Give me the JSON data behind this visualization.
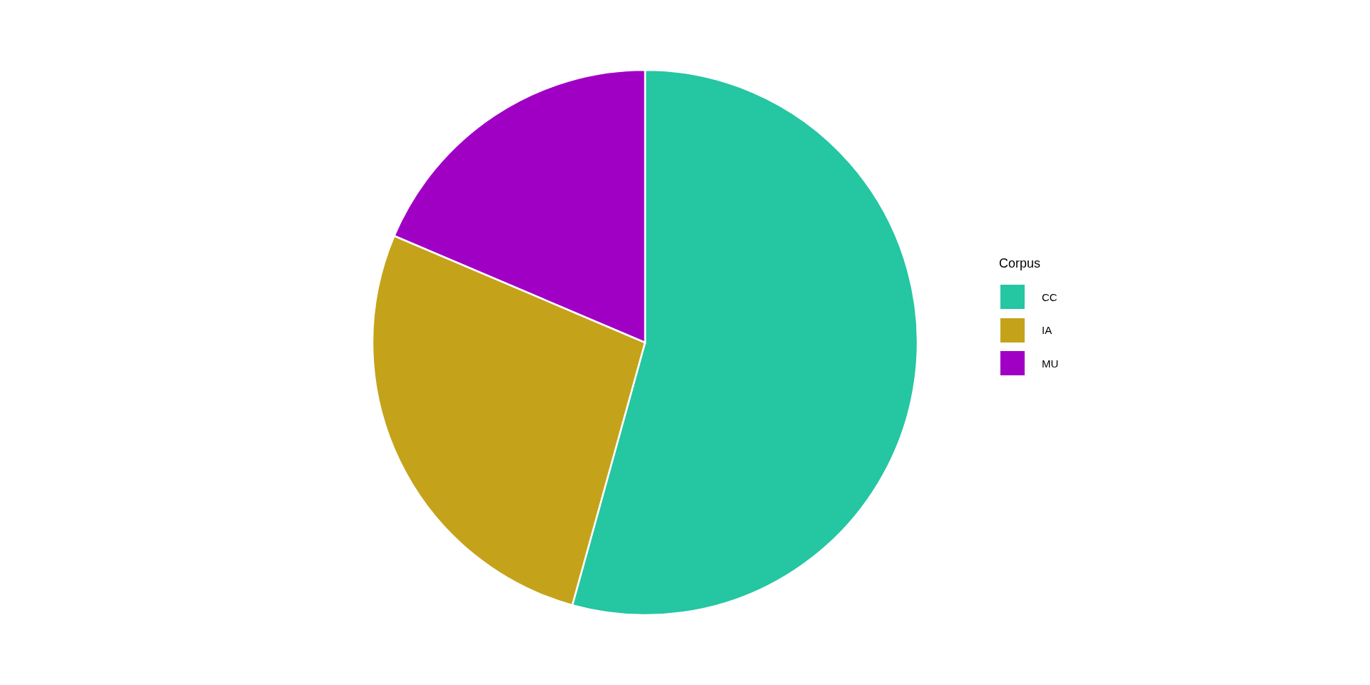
{
  "chart_data": {
    "type": "pie",
    "legend_title": "Corpus",
    "categories": [
      "CC",
      "IA",
      "MU"
    ],
    "values": [
      54.3,
      27.1,
      18.6
    ],
    "colors": [
      "#25c6a2",
      "#c4a31a",
      "#a000c4"
    ],
    "legend": "right"
  }
}
